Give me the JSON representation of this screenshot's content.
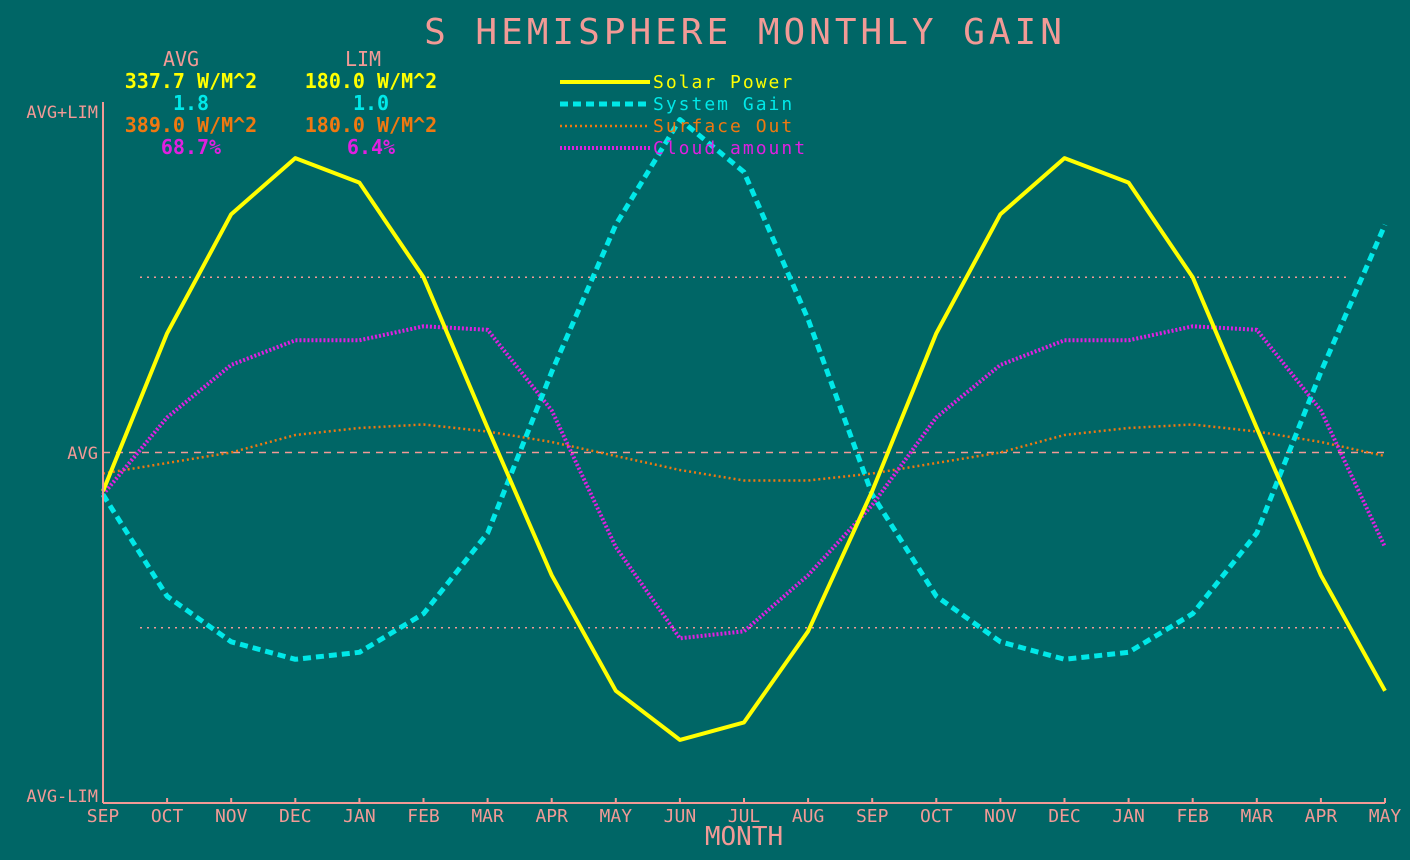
{
  "colors": {
    "background": "#006666",
    "axis": "#f29a96",
    "solar": "#ffff00",
    "gain": "#00e8e8",
    "surface": "#f07810",
    "cloud": "#e020e0"
  },
  "chart_data": {
    "type": "line",
    "title": "S HEMISPHERE MONTHLY GAIN",
    "xlabel": "MONTH",
    "x": [
      "SEP",
      "OCT",
      "NOV",
      "DEC",
      "JAN",
      "FEB",
      "MAR",
      "APR",
      "MAY",
      "JUN",
      "JUL",
      "AUG",
      "SEP",
      "OCT",
      "NOV",
      "DEC",
      "JAN",
      "FEB",
      "MAR",
      "APR",
      "MAY"
    ],
    "y_tick_labels": {
      "top": "AVG+LIM",
      "mid": "AVG",
      "bottom": "AVG-LIM"
    },
    "ylim": [
      -1,
      1
    ],
    "y_reference_lines": [
      -0.5,
      0.5
    ],
    "stats_headers": {
      "avg": "AVG",
      "lim": "LIM"
    },
    "stats": [
      {
        "avg": "337.7 W/M^2",
        "lim": "180.0 W/M^2"
      },
      {
        "avg": "1.8",
        "lim": "1.0"
      },
      {
        "avg": "389.0 W/M^2",
        "lim": "180.0 W/M^2"
      },
      {
        "avg": "68.7%",
        "lim": "6.4%"
      }
    ],
    "legend_position": "top-center",
    "series": [
      {
        "name": "Solar Power",
        "style": "solid",
        "values": [
          -0.11,
          0.34,
          0.68,
          0.84,
          0.77,
          0.5,
          0.07,
          -0.35,
          -0.68,
          -0.82,
          -0.77,
          -0.51,
          -0.11,
          0.34,
          0.68,
          0.84,
          0.77,
          0.5,
          0.07,
          -0.35,
          -0.68
        ]
      },
      {
        "name": "System Gain",
        "style": "dashed",
        "values": [
          -0.12,
          -0.41,
          -0.54,
          -0.59,
          -0.57,
          -0.46,
          -0.23,
          0.23,
          0.65,
          0.95,
          0.8,
          0.38,
          -0.12,
          -0.41,
          -0.54,
          -0.59,
          -0.57,
          -0.46,
          -0.23,
          0.23,
          0.65
        ]
      },
      {
        "name": "Surface Out",
        "style": "dotted",
        "values": [
          -0.06,
          -0.03,
          0.0,
          0.05,
          0.07,
          0.08,
          0.06,
          0.03,
          -0.01,
          -0.05,
          -0.08,
          -0.08,
          -0.06,
          -0.03,
          0.0,
          0.05,
          0.07,
          0.08,
          0.06,
          0.03,
          -0.01
        ]
      },
      {
        "name": "Cloud amount",
        "style": "dotted-thick",
        "values": [
          -0.12,
          0.1,
          0.25,
          0.32,
          0.32,
          0.36,
          0.35,
          0.12,
          -0.27,
          -0.53,
          -0.51,
          -0.35,
          -0.15,
          0.1,
          0.25,
          0.32,
          0.32,
          0.36,
          0.35,
          0.12,
          -0.27
        ]
      }
    ]
  }
}
